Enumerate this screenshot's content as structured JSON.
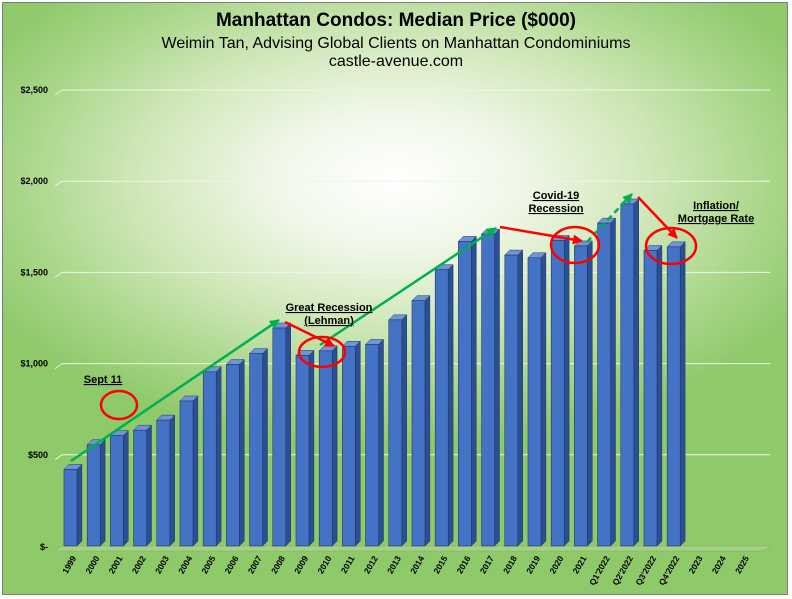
{
  "chart_data": {
    "type": "bar",
    "title": "Manhattan Condos: Median Price ($000)",
    "subtitle": "Weimin Tan, Advising Global Clients on Manhattan Condominiums",
    "source": "castle-avenue.com",
    "xlabel": "",
    "ylabel": "",
    "ylim": [
      0,
      2500
    ],
    "yticks": [
      {
        "value": 0,
        "label": "$-"
      },
      {
        "value": 500,
        "label": "$500"
      },
      {
        "value": 1000,
        "label": "$1,000"
      },
      {
        "value": 1500,
        "label": "$1,500"
      },
      {
        "value": 2000,
        "label": "$2,000"
      },
      {
        "value": 2500,
        "label": "$2,500"
      }
    ],
    "grid": true,
    "categories": [
      "1999",
      "2000",
      "2001",
      "2002",
      "2003",
      "2004",
      "2005",
      "2006",
      "2007",
      "2008",
      "2009",
      "2010",
      "2011",
      "2012",
      "2013",
      "2014",
      "2015",
      "2016",
      "2017",
      "2018",
      "2019",
      "2020",
      "2021",
      "Q1'2022",
      "Q2'2022",
      "Q3'2022",
      "Q4'2022",
      "2023",
      "2024",
      "2025"
    ],
    "values": [
      420,
      555,
      605,
      635,
      690,
      795,
      955,
      995,
      1055,
      1195,
      1045,
      1070,
      1095,
      1105,
      1240,
      1345,
      1515,
      1670,
      1710,
      1595,
      1580,
      1675,
      1645,
      1770,
      1875,
      1620,
      1640,
      null,
      null,
      null
    ],
    "bar_color": "#4472c4",
    "annotations": [
      {
        "text": "Sept 11",
        "lines": [
          "Sept 11"
        ]
      },
      {
        "text": "Great Recession (Lehman)",
        "lines": [
          "Great Recession",
          "(Lehman)"
        ]
      },
      {
        "text": "Covid-19 Recession",
        "lines": [
          "Covid-19",
          "Recession"
        ]
      },
      {
        "text": "Inflation/ Mortgage Rate",
        "lines": [
          "Inflation/",
          "Mortgage Rate"
        ]
      }
    ],
    "trend_color": "#00b050",
    "decline_color": "#ff0000"
  }
}
